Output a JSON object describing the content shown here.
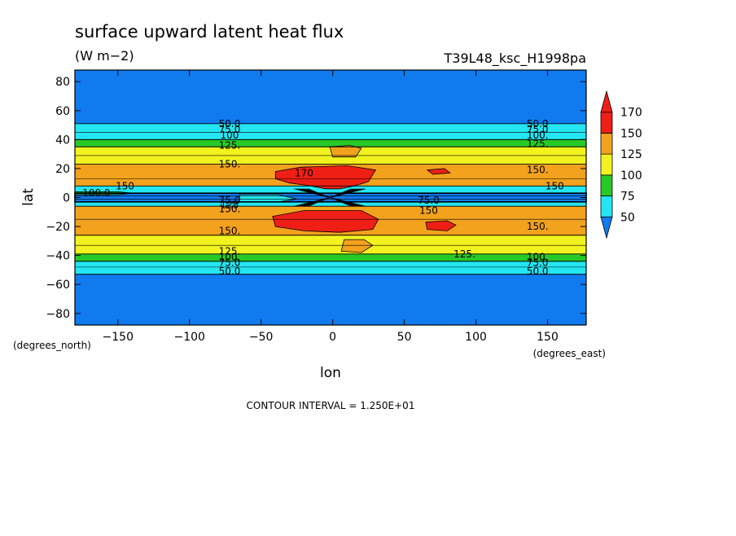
{
  "chart_data": {
    "type": "heatmap",
    "title": "surface upward latent heat flux",
    "units": "(W m−2)",
    "run_label": "T39L48_ksc_H1998pa",
    "xlabel": "lon",
    "ylabel": "lat",
    "x_units_label": "(degrees_east)",
    "y_units_label": "(degrees_north)",
    "xlim": [
      -180,
      177
    ],
    "ylim": [
      -88,
      88
    ],
    "x_ticks": [
      {
        "value": -150,
        "label": "−150"
      },
      {
        "value": -100,
        "label": "−100"
      },
      {
        "value": -50,
        "label": "−50"
      },
      {
        "value": 0,
        "label": "0"
      },
      {
        "value": 50,
        "label": "50"
      },
      {
        "value": 100,
        "label": "100"
      },
      {
        "value": 150,
        "label": "150"
      }
    ],
    "y_ticks": [
      {
        "value": 80,
        "label": "80"
      },
      {
        "value": 60,
        "label": "60"
      },
      {
        "value": 40,
        "label": "40"
      },
      {
        "value": 20,
        "label": "20"
      },
      {
        "value": 0,
        "label": "0"
      },
      {
        "value": -20,
        "label": "−20"
      },
      {
        "value": -40,
        "label": "−40"
      },
      {
        "value": -60,
        "label": "−60"
      },
      {
        "value": -80,
        "label": "−80"
      }
    ],
    "colorbar": {
      "levels": [
        {
          "label": "50",
          "value": 50
        },
        {
          "label": "75",
          "value": 75
        },
        {
          "label": "100",
          "value": 100
        },
        {
          "label": "125",
          "value": 125
        },
        {
          "label": "150",
          "value": 150
        },
        {
          "label": "170",
          "value": 170
        }
      ],
      "colors": [
        "#0f7bef",
        "#23e6f2",
        "#27c927",
        "#f2f21e",
        "#f2a21c",
        "#ef1f16",
        "#ef1f16"
      ]
    },
    "bands": [
      {
        "lat_from": -88,
        "lat_to": -53,
        "color": "#0f7bef"
      },
      {
        "lat_from": -53,
        "lat_to": -44,
        "color": "#23e6f2"
      },
      {
        "lat_from": -44,
        "lat_to": -39,
        "color": "#27c927"
      },
      {
        "lat_from": -39,
        "lat_to": -26,
        "color": "#f2f21e"
      },
      {
        "lat_from": -26,
        "lat_to": -6,
        "color": "#f2a21c"
      },
      {
        "lat_from": -6,
        "lat_to": -3,
        "color": "#23e6f2"
      },
      {
        "lat_from": -3,
        "lat_to": 3,
        "color": "#0f7bef"
      },
      {
        "lat_from": 3,
        "lat_to": 8,
        "color": "#23e6f2"
      },
      {
        "lat_from": 8,
        "lat_to": 23,
        "color": "#f2a21c"
      },
      {
        "lat_from": 23,
        "lat_to": 35,
        "color": "#f2f21e"
      },
      {
        "lat_from": 35,
        "lat_to": 40,
        "color": "#27c927"
      },
      {
        "lat_from": 40,
        "lat_to": 51,
        "color": "#23e6f2"
      },
      {
        "lat_from": 51,
        "lat_to": 88,
        "color": "#0f7bef"
      }
    ],
    "patches": [
      {
        "name": "red-core-north",
        "color": "#ef1f16",
        "points": [
          [
            -40,
            18
          ],
          [
            -22,
            21
          ],
          [
            10,
            22
          ],
          [
            30,
            19
          ],
          [
            25,
            11
          ],
          [
            15,
            8
          ],
          [
            5,
            6
          ],
          [
            -5,
            6
          ],
          [
            -15,
            8
          ],
          [
            -30,
            10
          ],
          [
            -40,
            13
          ]
        ]
      },
      {
        "name": "red-core-south",
        "color": "#ef1f16",
        "points": [
          [
            -42,
            -13
          ],
          [
            -20,
            -9
          ],
          [
            0,
            -9
          ],
          [
            20,
            -9
          ],
          [
            32,
            -15
          ],
          [
            28,
            -22
          ],
          [
            5,
            -24
          ],
          [
            -20,
            -23
          ],
          [
            -40,
            -20
          ]
        ]
      },
      {
        "name": "red-spot-south-east",
        "color": "#ef1f16",
        "points": [
          [
            65,
            -17
          ],
          [
            80,
            -16
          ],
          [
            86,
            -19
          ],
          [
            80,
            -23
          ],
          [
            66,
            -22
          ]
        ]
      },
      {
        "name": "red-spot-north-east",
        "color": "#ef1f16",
        "points": [
          [
            66,
            19
          ],
          [
            78,
            20
          ],
          [
            82,
            17
          ],
          [
            70,
            16
          ]
        ]
      },
      {
        "name": "orange-blob-north",
        "color": "#f2a21c",
        "points": [
          [
            -2,
            35
          ],
          [
            12,
            36
          ],
          [
            20,
            34
          ],
          [
            16,
            28
          ],
          [
            0,
            28
          ]
        ]
      },
      {
        "name": "orange-blob-south",
        "color": "#f2a21c",
        "points": [
          [
            8,
            -29
          ],
          [
            22,
            -29
          ],
          [
            28,
            -33
          ],
          [
            20,
            -38
          ],
          [
            6,
            -37
          ]
        ]
      },
      {
        "name": "cyan-wedge-west",
        "color": "#23e6f2",
        "points": [
          [
            -65,
            2
          ],
          [
            -38,
            2
          ],
          [
            -25,
            -1
          ],
          [
            -38,
            -3
          ],
          [
            -65,
            -3
          ]
        ]
      },
      {
        "name": "green-strip-west",
        "color": "#27c927",
        "points": [
          [
            -180,
            4
          ],
          [
            -150,
            4
          ],
          [
            -140,
            3
          ],
          [
            -150,
            2
          ],
          [
            -180,
            2
          ]
        ]
      }
    ],
    "contour_labels": [
      {
        "text": "50.0",
        "lon": -72,
        "lat": 51
      },
      {
        "text": "75.0",
        "lon": -72,
        "lat": 47
      },
      {
        "text": "100",
        "lon": -72,
        "lat": 43
      },
      {
        "text": "125.",
        "lon": -72,
        "lat": 36
      },
      {
        "text": "150.",
        "lon": -72,
        "lat": 23
      },
      {
        "text": "170",
        "lon": -20,
        "lat": 17
      },
      {
        "text": "150",
        "lon": -145,
        "lat": 8
      },
      {
        "text": "100.0",
        "lon": -165,
        "lat": 3
      },
      {
        "text": "75.0",
        "lon": -72,
        "lat": -2
      },
      {
        "text": "125",
        "lon": -72,
        "lat": -5
      },
      {
        "text": "150.",
        "lon": -72,
        "lat": -8
      },
      {
        "text": "150.",
        "lon": -72,
        "lat": -23
      },
      {
        "text": "125.",
        "lon": -72,
        "lat": -37
      },
      {
        "text": "100.",
        "lon": -72,
        "lat": -41
      },
      {
        "text": "75.0",
        "lon": -72,
        "lat": -45
      },
      {
        "text": "50.0",
        "lon": -72,
        "lat": -51
      },
      {
        "text": "50.0",
        "lon": 143,
        "lat": 51
      },
      {
        "text": "75.0",
        "lon": 143,
        "lat": 47
      },
      {
        "text": "100.",
        "lon": 143,
        "lat": 43
      },
      {
        "text": "125.",
        "lon": 143,
        "lat": 37
      },
      {
        "text": "150.",
        "lon": 143,
        "lat": 19
      },
      {
        "text": "150",
        "lon": 155,
        "lat": 8
      },
      {
        "text": "75.0",
        "lon": 67,
        "lat": -2
      },
      {
        "text": "150",
        "lon": 67,
        "lat": -9
      },
      {
        "text": "150.",
        "lon": 143,
        "lat": -20
      },
      {
        "text": "125.",
        "lon": 92,
        "lat": -39
      },
      {
        "text": "100.",
        "lon": 143,
        "lat": -41
      },
      {
        "text": "75.0",
        "lon": 143,
        "lat": -45
      },
      {
        "text": "50.0",
        "lon": 143,
        "lat": -51
      }
    ],
    "footer": "CONTOUR INTERVAL = 1.250E+01"
  }
}
